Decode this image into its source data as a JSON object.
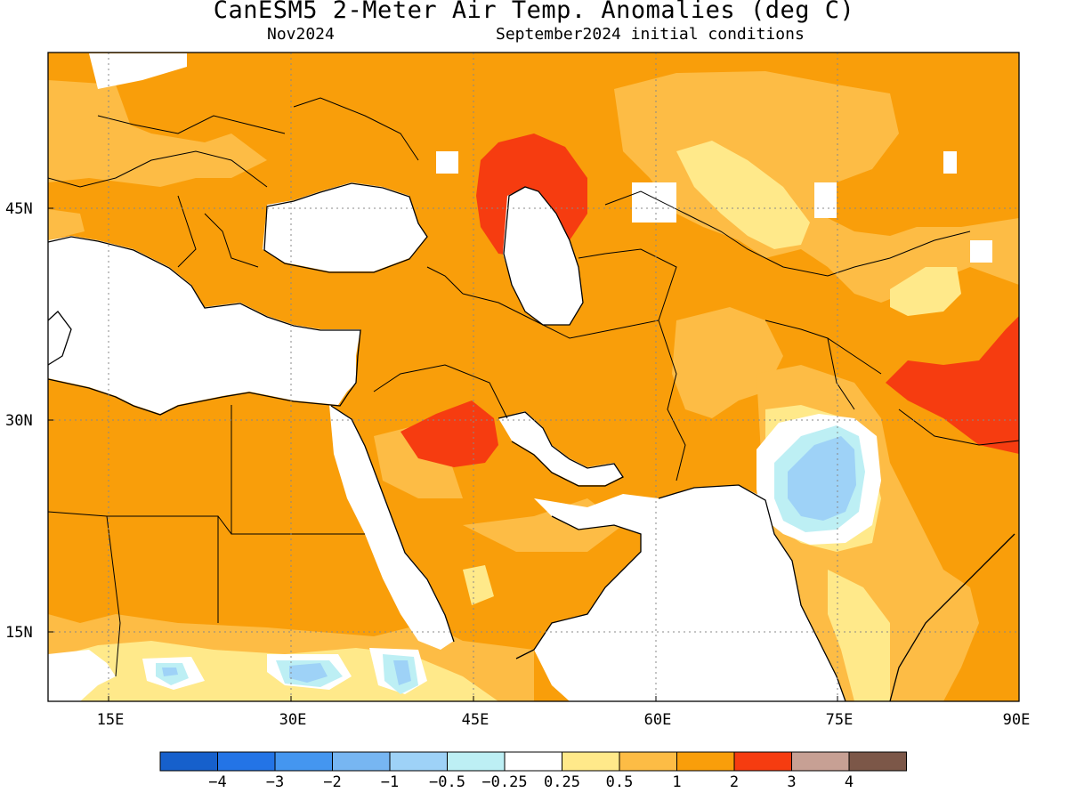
{
  "title": "CanESM5 2-Meter Air Temp. Anomalies (deg C)",
  "subtitle_left": "Nov2024",
  "subtitle_right": "September2024 initial conditions",
  "lat_labels": [
    "45N",
    "30N",
    "15N"
  ],
  "lon_labels": [
    "15E",
    "30E",
    "45E",
    "60E",
    "75E",
    "90E"
  ],
  "colorbar": {
    "labels": [
      "-4",
      "-3",
      "-2",
      "-1",
      "-0.5",
      "-0.25",
      "0.25",
      "0.5",
      "1",
      "2",
      "3",
      "4"
    ],
    "colors": [
      "#1660cc",
      "#2374e6",
      "#4496f0",
      "#77b6f2",
      "#9ed2f7",
      "#bdeff4",
      "#ffffff",
      "#ffe98a",
      "#fdbc45",
      "#f99e0a",
      "#f63c10",
      "#c7a094",
      "#7c5748"
    ]
  },
  "legend_colors": {
    "land_base": "#f99e0a",
    "light_orange": "#fdbc45",
    "yellow": "#ffe98a",
    "red": "#f63c10",
    "blue": "#9ed2f7",
    "light_blue": "#bdeff4",
    "sea": "#ffffff",
    "lines": "#000000"
  }
}
